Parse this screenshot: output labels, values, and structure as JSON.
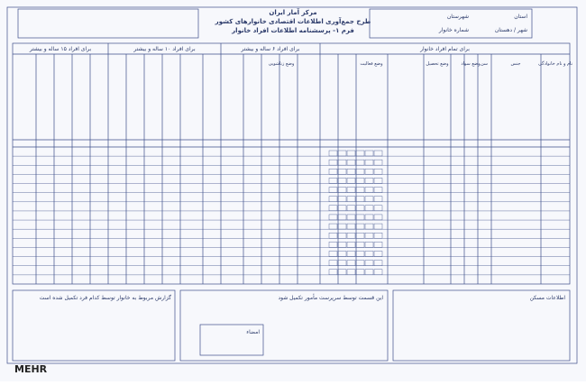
{
  "header": {
    "organization": "مرکز آمار ایران",
    "title": "طرح جمع‌آوری اطلاعات اقتصادی خانوارهای کشور",
    "form": "فرم ۱- پرسشنامه اطلاعات افراد خانوار",
    "province": "استان",
    "county": "شهرستان",
    "city": "شهر / دهستان",
    "household": "شماره خانوار"
  },
  "sections": [
    "برای تمام افراد خانوار",
    "برای افراد ۶ ساله و بیشتر",
    "برای افراد ۱۰ ساله و بیشتر",
    "برای افراد ۱۵ ساله و بیشتر"
  ],
  "columns": [
    "نام و نام خانوادگی",
    "جنس",
    "سن",
    "وضع سواد",
    "وضع تحصیل",
    "وضع فعالیت",
    "وضع زناشویی"
  ],
  "bottom": {
    "left_note": "گزارش مربوط به خانوار توسط کدام فرد تکمیل شده است",
    "middle_note": "این قسمت توسط سرپرست مأمور تکمیل شود",
    "right_note": "اطلاعات مسکن",
    "signature": "امضاء"
  },
  "watermark": "MEHR"
}
